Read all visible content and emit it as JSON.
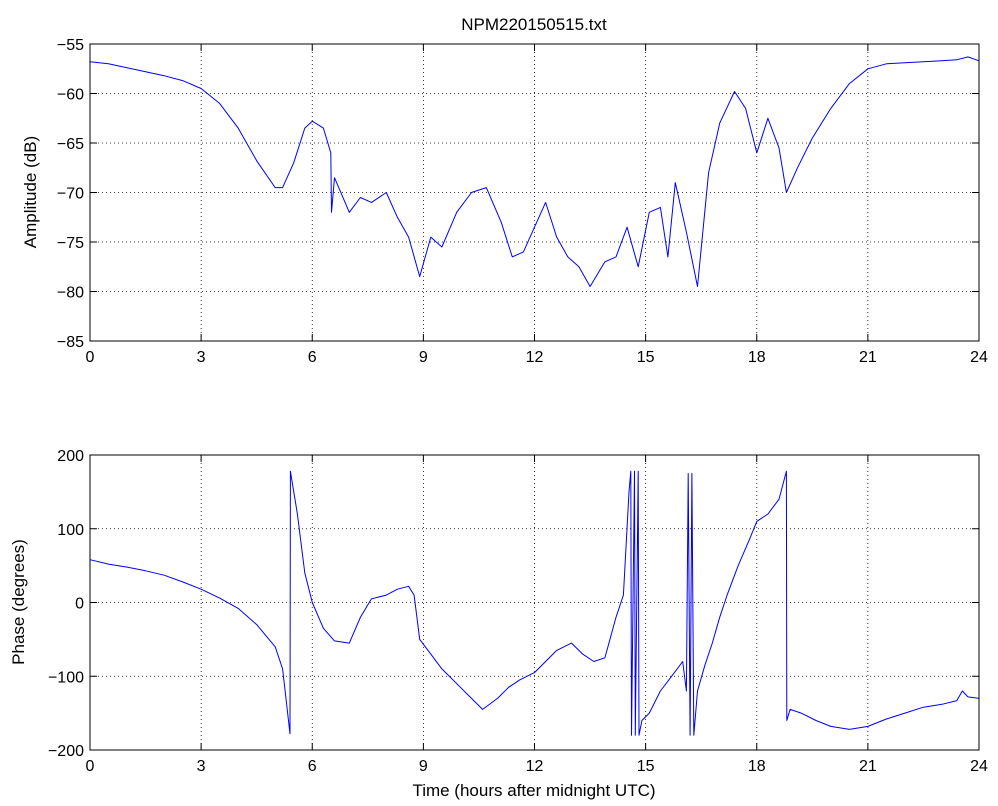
{
  "chart_data": [
    {
      "type": "line",
      "title": "NPM220150515.txt",
      "xlabel": "",
      "ylabel": "Amplitude (dB)",
      "xlim": [
        0,
        24
      ],
      "ylim": [
        -85,
        -55
      ],
      "xticks": [
        "0",
        "3",
        "6",
        "9",
        "12",
        "15",
        "18",
        "21",
        "24"
      ],
      "yticks": [
        "−55",
        "−60",
        "−65",
        "−70",
        "−75",
        "−80",
        "−85"
      ],
      "grid": true,
      "color": "#0000ff",
      "series": [
        {
          "x": [
            0,
            0.5,
            1,
            1.5,
            2,
            2.5,
            3,
            3.5,
            4,
            4.5,
            5,
            5.2,
            5.5,
            5.8,
            6,
            6.3,
            6.5,
            6.52,
            6.6,
            7,
            7.3,
            7.6,
            8,
            8.3,
            8.6,
            8.9,
            9.2,
            9.5,
            9.9,
            10.3,
            10.7,
            11.1,
            11.4,
            11.7,
            12,
            12.3,
            12.6,
            12.9,
            13.2,
            13.5,
            13.9,
            14.2,
            14.5,
            14.8,
            15.1,
            15.4,
            15.6,
            15.8,
            16.1,
            16.4,
            16.7,
            17,
            17.4,
            17.7,
            18,
            18.3,
            18.6,
            18.8,
            19.1,
            19.5,
            20,
            20.5,
            21,
            21.5,
            22,
            22.5,
            23,
            23.4,
            23.7,
            24
          ],
          "y": [
            -56.8,
            -57,
            -57.4,
            -57.8,
            -58.2,
            -58.7,
            -59.5,
            -61,
            -63.5,
            -66.8,
            -69.5,
            -69.5,
            -67,
            -63.5,
            -62.8,
            -63.5,
            -66,
            -72,
            -68.5,
            -72,
            -70.5,
            -71,
            -70,
            -72.5,
            -74.5,
            -78.5,
            -74.5,
            -75.5,
            -72,
            -70,
            -69.5,
            -73,
            -76.5,
            -76,
            -73.5,
            -71,
            -74.5,
            -76.5,
            -77.5,
            -79.5,
            -77,
            -76.5,
            -73.5,
            -77.5,
            -72,
            -71.5,
            -76.5,
            -69,
            -74,
            -79.5,
            -68,
            -63,
            -59.8,
            -61.5,
            -66,
            -62.5,
            -65.5,
            -70,
            -67.5,
            -64.5,
            -61.5,
            -59,
            -57.5,
            -57,
            -56.9,
            -56.8,
            -56.7,
            -56.6,
            -56.3,
            -56.7
          ]
        }
      ]
    },
    {
      "type": "line",
      "title": "",
      "xlabel": "Time (hours after midnight UTC)",
      "ylabel": "Phase (degrees)",
      "xlim": [
        0,
        24
      ],
      "ylim": [
        -200,
        200
      ],
      "xticks": [
        "0",
        "3",
        "6",
        "9",
        "12",
        "15",
        "18",
        "21",
        "24"
      ],
      "yticks": [
        "200",
        "100",
        "0",
        "−100",
        "−200"
      ],
      "grid": true,
      "color": "#0000ff",
      "series": [
        {
          "x": [
            0,
            0.5,
            1,
            1.5,
            2,
            2.5,
            3,
            3.5,
            4,
            4.5,
            5,
            5.2,
            5.4,
            5.41,
            5.6,
            5.8,
            6,
            6.3,
            6.6,
            7,
            7.3,
            7.6,
            8,
            8.3,
            8.6,
            8.75,
            8.9,
            9.2,
            9.5,
            10,
            10.3,
            10.6,
            11,
            11.3,
            11.6,
            12,
            12.3,
            12.6,
            13,
            13.3,
            13.6,
            13.9,
            14.2,
            14.4,
            14.55,
            14.6,
            14.62,
            14.7,
            14.72,
            14.8,
            14.82,
            14.9,
            15.1,
            15.4,
            15.7,
            16,
            16.1,
            16.15,
            16.2,
            16.25,
            16.3,
            16.4,
            16.6,
            16.8,
            17,
            17.2,
            17.5,
            17.8,
            18,
            18.3,
            18.6,
            18.8,
            18.81,
            18.9,
            19.2,
            19.6,
            20,
            20.5,
            21,
            21.5,
            22,
            22.5,
            23,
            23.4,
            23.55,
            23.7,
            24
          ],
          "y": [
            58,
            52,
            48,
            43,
            37,
            28,
            18,
            6,
            -8,
            -30,
            -60,
            -90,
            -178,
            178,
            120,
            40,
            0,
            -35,
            -52,
            -55,
            -20,
            5,
            10,
            18,
            22,
            10,
            -50,
            -70,
            -90,
            -115,
            -130,
            -145,
            -130,
            -115,
            -105,
            -95,
            -80,
            -65,
            -55,
            -70,
            -80,
            -75,
            -20,
            10,
            150,
            178,
            -180,
            178,
            -180,
            178,
            -180,
            -160,
            -150,
            -120,
            -100,
            -80,
            -120,
            175,
            -180,
            175,
            -180,
            -120,
            -85,
            -55,
            -20,
            10,
            50,
            85,
            110,
            120,
            140,
            178,
            -160,
            -145,
            -150,
            -160,
            -168,
            -172,
            -168,
            -158,
            -150,
            -142,
            -138,
            -133,
            -120,
            -128,
            -130
          ]
        }
      ]
    }
  ]
}
